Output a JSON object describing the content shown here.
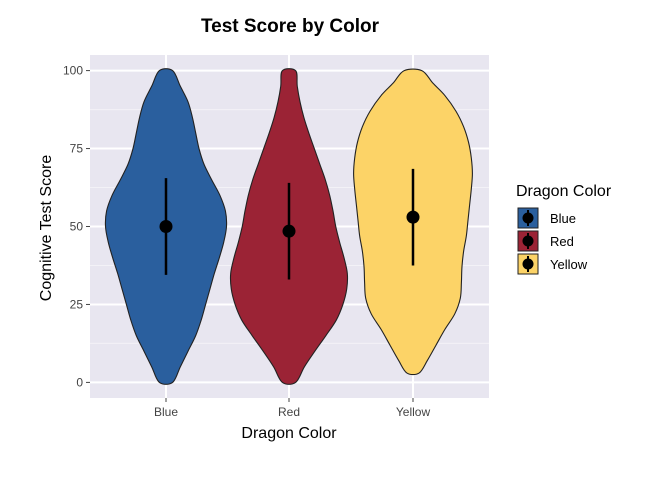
{
  "chart_data": {
    "type": "violin",
    "title": "Test Score by Color",
    "xlabel": "Dragon Color",
    "ylabel": "Cognitive Test Score",
    "categories": [
      "Blue",
      "Red",
      "Yellow"
    ],
    "y_ticks": [
      0,
      25,
      50,
      75,
      100
    ],
    "ylim": [
      -5,
      105
    ],
    "grid": true,
    "legend": {
      "title": "Dragon Color",
      "placement": "right",
      "entries": [
        "Blue",
        "Red",
        "Yellow"
      ]
    },
    "series": [
      {
        "category": "Blue",
        "color": "#2a5f9e",
        "mean": 50,
        "range": [
          34.5,
          65.5
        ],
        "min": 0,
        "max": 100,
        "density": [
          [
            0,
            0.12
          ],
          [
            5,
            0.26
          ],
          [
            10,
            0.4
          ],
          [
            15,
            0.54
          ],
          [
            20,
            0.64
          ],
          [
            25,
            0.72
          ],
          [
            30,
            0.8
          ],
          [
            35,
            0.88
          ],
          [
            40,
            0.97
          ],
          [
            45,
            1.05
          ],
          [
            50,
            1.1
          ],
          [
            55,
            1.08
          ],
          [
            60,
            0.98
          ],
          [
            65,
            0.83
          ],
          [
            70,
            0.69
          ],
          [
            75,
            0.6
          ],
          [
            80,
            0.54
          ],
          [
            85,
            0.48
          ],
          [
            90,
            0.4
          ],
          [
            95,
            0.26
          ],
          [
            100,
            0.12
          ]
        ]
      },
      {
        "category": "Red",
        "color": "#9b2335",
        "mean": 48.5,
        "range": [
          33,
          64
        ],
        "min": 0,
        "max": 100,
        "density": [
          [
            0,
            0.12
          ],
          [
            5,
            0.28
          ],
          [
            10,
            0.47
          ],
          [
            15,
            0.67
          ],
          [
            20,
            0.86
          ],
          [
            25,
            0.98
          ],
          [
            30,
            1.05
          ],
          [
            35,
            1.06
          ],
          [
            40,
            1.0
          ],
          [
            45,
            0.92
          ],
          [
            50,
            0.85
          ],
          [
            55,
            0.8
          ],
          [
            60,
            0.74
          ],
          [
            65,
            0.66
          ],
          [
            70,
            0.56
          ],
          [
            75,
            0.46
          ],
          [
            80,
            0.36
          ],
          [
            85,
            0.27
          ],
          [
            90,
            0.2
          ],
          [
            95,
            0.15
          ],
          [
            100,
            0.12
          ]
        ]
      },
      {
        "category": "Yellow",
        "color": "#fcd367",
        "mean": 53,
        "range": [
          37.5,
          68.5
        ],
        "min": 3,
        "max": 100,
        "density": [
          [
            3,
            0.11
          ],
          [
            7,
            0.26
          ],
          [
            12,
            0.42
          ],
          [
            17,
            0.58
          ],
          [
            22,
            0.76
          ],
          [
            27,
            0.86
          ],
          [
            32,
            0.88
          ],
          [
            37,
            0.89
          ],
          [
            42,
            0.92
          ],
          [
            47,
            0.97
          ],
          [
            52,
            1.0
          ],
          [
            57,
            1.03
          ],
          [
            62,
            1.06
          ],
          [
            67,
            1.08
          ],
          [
            72,
            1.06
          ],
          [
            77,
            1.01
          ],
          [
            82,
            0.92
          ],
          [
            87,
            0.78
          ],
          [
            92,
            0.58
          ],
          [
            96,
            0.36
          ],
          [
            100,
            0.16
          ]
        ]
      }
    ]
  }
}
